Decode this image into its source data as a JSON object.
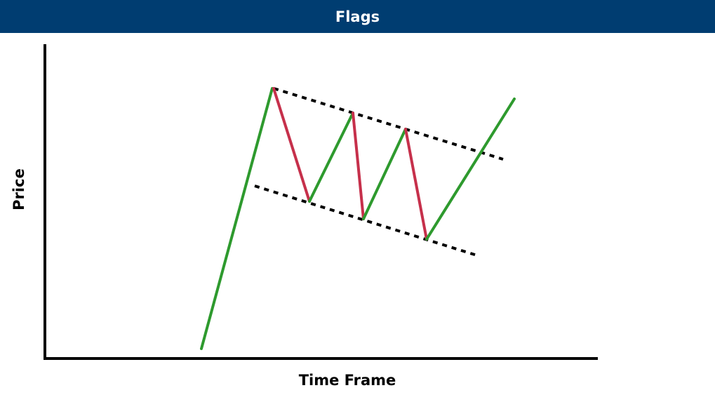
{
  "header": {
    "title": "Flags",
    "background": "#003d71",
    "text_color": "#ffffff"
  },
  "axes": {
    "x_label": "Time Frame",
    "y_label": "Price"
  },
  "colors": {
    "up_move": "#2e9a2e",
    "down_move": "#c6304b",
    "trendline": "#000000",
    "axis": "#000000"
  }
}
